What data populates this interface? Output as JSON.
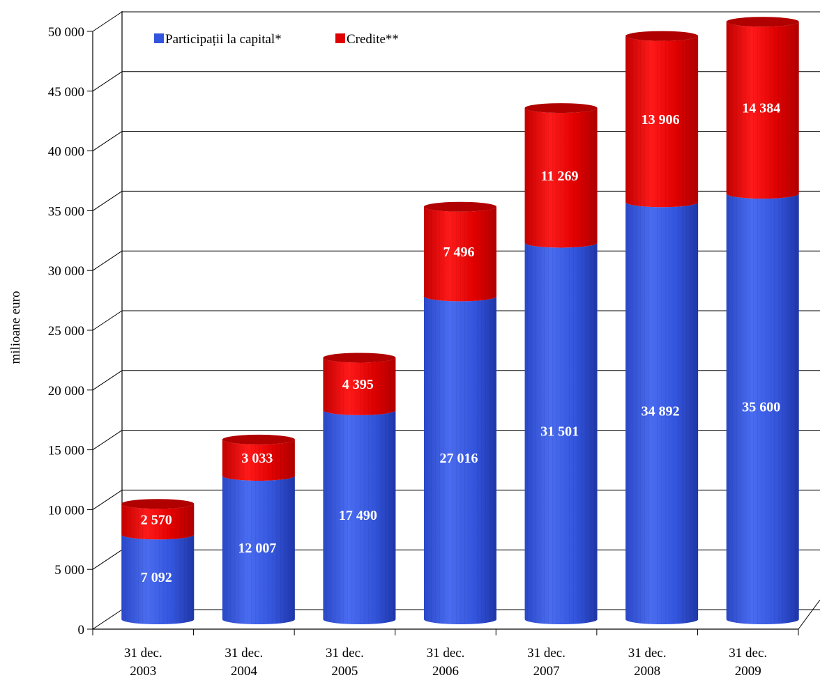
{
  "chart_data": {
    "type": "bar",
    "stacked": true,
    "style": "3d-cylinder",
    "categories": [
      [
        "31 dec.",
        "2003"
      ],
      [
        "31 dec.",
        "2004"
      ],
      [
        "31 dec.",
        "2005"
      ],
      [
        "31 dec.",
        "2006"
      ],
      [
        "31 dec.",
        "2007"
      ],
      [
        "31 dec.",
        "2008"
      ],
      [
        "31 dec.",
        "2009"
      ]
    ],
    "series": [
      {
        "name": "Participații la capital*",
        "color": "#3355dd",
        "values": [
          7092,
          12007,
          17490,
          27016,
          31501,
          34892,
          35600
        ],
        "labels": [
          "7 092",
          "12 007",
          "17 490",
          "27 016",
          "31 501",
          "34 892",
          "35 600"
        ]
      },
      {
        "name": "Credite**",
        "color": "#e00000",
        "values": [
          2570,
          3033,
          4395,
          7496,
          11269,
          13906,
          14384
        ],
        "labels": [
          "2 570",
          "3 033",
          "4 395",
          "7 496",
          "11 269",
          "13 906",
          "14 384"
        ]
      }
    ],
    "ylabel": "milioane euro",
    "ylim": [
      0,
      50000
    ],
    "yticks": [
      0,
      5000,
      10000,
      15000,
      20000,
      25000,
      30000,
      35000,
      40000,
      45000,
      50000
    ],
    "ytick_labels": [
      "0",
      "5 000",
      "10 000",
      "15 000",
      "20 000",
      "25 000",
      "30 000",
      "35 000",
      "40 000",
      "45 000",
      "50 000"
    ],
    "grid": true,
    "legend_position": "top-left"
  }
}
